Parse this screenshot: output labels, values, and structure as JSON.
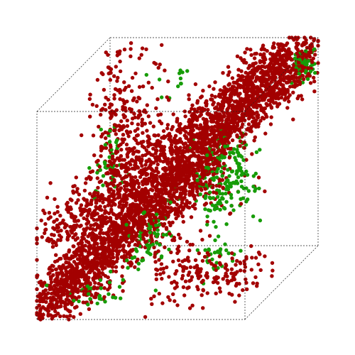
{
  "chart_data": {
    "type": "scatter",
    "projection": "3d-cube",
    "axes": {
      "x": [
        0,
        1
      ],
      "y": [
        0,
        1
      ],
      "z": [
        0,
        1
      ]
    },
    "grid": false,
    "legend": "none",
    "marker": "filled-circle",
    "colors": {
      "red": "#a30000",
      "green": "#179c08",
      "box": "#222222"
    },
    "seed": 20240611,
    "clusters": [
      {
        "color": "red",
        "shape": "line",
        "count": 2200,
        "from": [
          0.02,
          0.02,
          0.05
        ],
        "to": [
          0.95,
          0.98,
          0.95
        ],
        "spread": 0.06
      },
      {
        "color": "red",
        "shape": "line",
        "count": 900,
        "from": [
          0.05,
          0.02,
          0.4
        ],
        "to": [
          0.9,
          0.9,
          0.95
        ],
        "spread": 0.06
      },
      {
        "color": "red",
        "shape": "line",
        "count": 500,
        "from": [
          0.02,
          0.2,
          0.05
        ],
        "to": [
          0.55,
          0.95,
          0.4
        ],
        "spread": 0.08
      },
      {
        "color": "red",
        "shape": "blob",
        "count": 320,
        "center": [
          0.12,
          0.85,
          0.55
        ],
        "spread": [
          0.08,
          0.1,
          0.25
        ]
      },
      {
        "color": "red",
        "shape": "blob",
        "count": 120,
        "center": [
          0.72,
          0.05,
          0.2
        ],
        "spread": [
          0.1,
          0.04,
          0.08
        ]
      },
      {
        "color": "red",
        "shape": "blob",
        "count": 60,
        "center": [
          0.85,
          0.35,
          0.1
        ],
        "spread": [
          0.06,
          0.1,
          0.05
        ]
      },
      {
        "color": "red",
        "shape": "blob",
        "count": 20,
        "center": [
          0.06,
          0.28,
          0.05
        ],
        "spread": [
          0.03,
          0.03,
          0.02
        ]
      },
      {
        "color": "green",
        "shape": "blob",
        "count": 160,
        "center": [
          0.65,
          0.7,
          0.45
        ],
        "spread": [
          0.08,
          0.08,
          0.1
        ]
      },
      {
        "color": "green",
        "shape": "blob",
        "count": 60,
        "center": [
          0.95,
          0.93,
          0.9
        ],
        "spread": [
          0.03,
          0.04,
          0.04
        ]
      },
      {
        "color": "green",
        "shape": "blob",
        "count": 60,
        "center": [
          0.45,
          0.3,
          0.3
        ],
        "spread": [
          0.05,
          0.06,
          0.08
        ]
      },
      {
        "color": "green",
        "shape": "blob",
        "count": 40,
        "center": [
          0.05,
          0.8,
          0.4
        ],
        "spread": [
          0.03,
          0.06,
          0.1
        ]
      },
      {
        "color": "green",
        "shape": "blob",
        "count": 30,
        "center": [
          0.25,
          0.08,
          0.1
        ],
        "spread": [
          0.08,
          0.03,
          0.04
        ]
      },
      {
        "color": "green",
        "shape": "blob",
        "count": 30,
        "center": [
          0.7,
          0.45,
          0.15
        ],
        "spread": [
          0.04,
          0.06,
          0.05
        ]
      },
      {
        "color": "green",
        "shape": "blob",
        "count": 20,
        "center": [
          0.8,
          0.15,
          0.5
        ],
        "spread": [
          0.04,
          0.06,
          0.05
        ]
      },
      {
        "color": "green",
        "shape": "blob",
        "count": 12,
        "center": [
          0.35,
          0.95,
          0.8
        ],
        "spread": [
          0.05,
          0.02,
          0.05
        ]
      }
    ]
  }
}
